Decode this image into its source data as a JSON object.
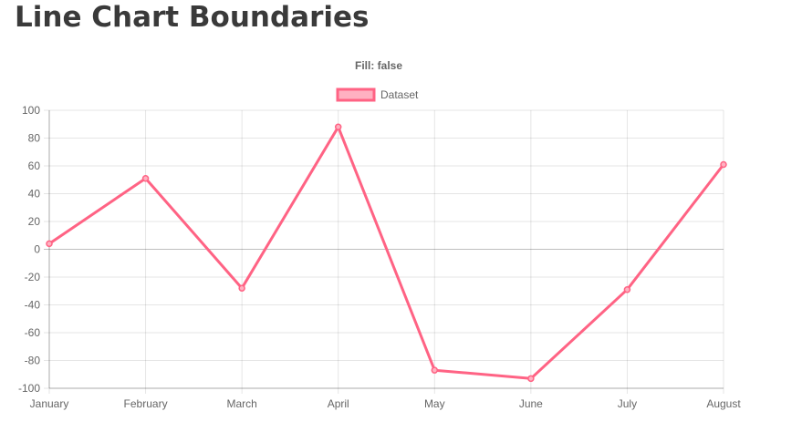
{
  "page": {
    "title": "Line Chart Boundaries"
  },
  "chart_data": {
    "type": "line",
    "title": "Fill: false",
    "categories": [
      "January",
      "February",
      "March",
      "April",
      "May",
      "June",
      "July",
      "August"
    ],
    "series": [
      {
        "name": "Dataset",
        "values": [
          4,
          51,
          -28,
          88,
          -87,
          -93,
          -29,
          61
        ],
        "color": "#ff6384",
        "fill_color": "#ffb1c1",
        "fill": false
      }
    ],
    "ylim": [
      -100,
      100
    ],
    "yticks": [
      100,
      80,
      60,
      40,
      20,
      0,
      -20,
      -40,
      -60,
      -80,
      -100
    ],
    "grid": true,
    "legend": "top-center",
    "xlabel": "",
    "ylabel": ""
  }
}
